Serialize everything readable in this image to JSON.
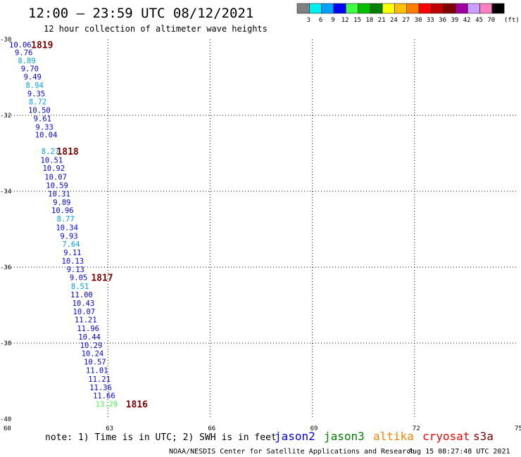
{
  "header": {
    "title": "12:00 – 23:59 UTC 08/12/2021",
    "subtitle": "12 hour collection of altimeter wave heights"
  },
  "colorbar": {
    "unit_label": "(ft)",
    "bins": [
      {
        "label": "3",
        "color": "#808080"
      },
      {
        "label": "6",
        "color": "#00f0f0"
      },
      {
        "label": "9",
        "color": "#00a0ff"
      },
      {
        "label": "12",
        "color": "#0000ff"
      },
      {
        "label": "15",
        "color": "#40ff40"
      },
      {
        "label": "18",
        "color": "#00c000"
      },
      {
        "label": "21",
        "color": "#008000"
      },
      {
        "label": "24",
        "color": "#ffff00"
      },
      {
        "label": "27",
        "color": "#ffc000"
      },
      {
        "label": "30",
        "color": "#ff8000"
      },
      {
        "label": "33",
        "color": "#ff0000"
      },
      {
        "label": "36",
        "color": "#c00000"
      },
      {
        "label": "39",
        "color": "#800000"
      },
      {
        "label": "42",
        "color": "#a000a0"
      },
      {
        "label": "45",
        "color": "#c8a0ff"
      },
      {
        "label": "70",
        "color": "#ff80c0"
      },
      {
        "label": "",
        "color": "#000000"
      }
    ]
  },
  "legend": {
    "note": "note: 1) Time is in UTC; 2) SWH is in feet",
    "satellites": [
      {
        "name": "jason2",
        "color": "#0000ff"
      },
      {
        "name": "jason3",
        "color": "#008000"
      },
      {
        "name": "altika",
        "color": "#ff8000"
      },
      {
        "name": "cryosat",
        "color": "#ff0000"
      },
      {
        "name": "s3a",
        "color": "#800000"
      }
    ]
  },
  "footer": {
    "credit": "NOAA/NESDIS Center for Satellite Applications and Research",
    "timestamp": "Aug 15 08:27:48 UTC 2021"
  },
  "chart_data": {
    "type": "scatter",
    "xlim": [
      60,
      75
    ],
    "ylim": [
      -40,
      -30
    ],
    "x_ticks": [
      {
        "value": 60,
        "label": "60"
      },
      {
        "value": 63,
        "label": "63"
      },
      {
        "value": 66,
        "label": "66"
      },
      {
        "value": 69,
        "label": "69"
      },
      {
        "value": 72,
        "label": "72"
      },
      {
        "value": 75,
        "label": "75"
      }
    ],
    "y_ticks": [
      {
        "value": -30,
        "label": "-30"
      },
      {
        "value": -32,
        "label": "-32"
      },
      {
        "value": -34,
        "label": "-34"
      },
      {
        "value": -36,
        "label": "-36"
      },
      {
        "value": -38,
        "label": "-38"
      },
      {
        "value": -40,
        "label": "-40"
      }
    ],
    "grid": true,
    "points": [
      {
        "lon": 60.43,
        "lat": -30.05,
        "swh": "10.06",
        "color": "#0000ff"
      },
      {
        "lon": 60.53,
        "lat": -30.25,
        "swh": "9.76",
        "color": "#0000ff"
      },
      {
        "lon": 60.62,
        "lat": -30.46,
        "swh": "8.89",
        "color": "#00a0ff"
      },
      {
        "lon": 60.71,
        "lat": -30.68,
        "swh": "9.70",
        "color": "#0000ff"
      },
      {
        "lon": 60.79,
        "lat": -30.89,
        "swh": "9.49",
        "color": "#0000ff"
      },
      {
        "lon": 60.85,
        "lat": -31.11,
        "swh": "8.94",
        "color": "#00a0ff"
      },
      {
        "lon": 60.9,
        "lat": -31.33,
        "swh": "9.35",
        "color": "#0000ff"
      },
      {
        "lon": 60.94,
        "lat": -31.55,
        "swh": "8.72",
        "color": "#00a0ff"
      },
      {
        "lon": 60.99,
        "lat": -31.77,
        "swh": "10.50",
        "color": "#0000ff"
      },
      {
        "lon": 61.08,
        "lat": -31.99,
        "swh": "9.61",
        "color": "#0000ff"
      },
      {
        "lon": 61.14,
        "lat": -32.21,
        "swh": "9.33",
        "color": "#0000ff"
      },
      {
        "lon": 61.19,
        "lat": -32.42,
        "swh": "10.04",
        "color": "#0000ff"
      },
      {
        "lon": 61.31,
        "lat": -32.85,
        "swh": "8.27",
        "color": "#00a0ff"
      },
      {
        "lon": 61.35,
        "lat": -33.08,
        "swh": "10.51",
        "color": "#0000ff"
      },
      {
        "lon": 61.41,
        "lat": -33.3,
        "swh": "10.92",
        "color": "#0000ff"
      },
      {
        "lon": 61.47,
        "lat": -33.53,
        "swh": "10.07",
        "color": "#0000ff"
      },
      {
        "lon": 61.51,
        "lat": -33.75,
        "swh": "10.59",
        "color": "#0000ff"
      },
      {
        "lon": 61.57,
        "lat": -33.97,
        "swh": "10.31",
        "color": "#0000ff"
      },
      {
        "lon": 61.65,
        "lat": -34.19,
        "swh": "9.89",
        "color": "#0000ff"
      },
      {
        "lon": 61.67,
        "lat": -34.41,
        "swh": "10.96",
        "color": "#0000ff"
      },
      {
        "lon": 61.76,
        "lat": -34.63,
        "swh": "8.77",
        "color": "#00a0ff"
      },
      {
        "lon": 61.8,
        "lat": -34.86,
        "swh": "10.34",
        "color": "#0000ff"
      },
      {
        "lon": 61.86,
        "lat": -35.08,
        "swh": "9.93",
        "color": "#0000ff"
      },
      {
        "lon": 61.92,
        "lat": -35.3,
        "swh": "7.64",
        "color": "#00a0ff"
      },
      {
        "lon": 61.96,
        "lat": -35.52,
        "swh": "9.11",
        "color": "#0000ff"
      },
      {
        "lon": 61.97,
        "lat": -35.74,
        "swh": "10.13",
        "color": "#0000ff"
      },
      {
        "lon": 62.05,
        "lat": -35.96,
        "swh": "9.13",
        "color": "#0000ff"
      },
      {
        "lon": 62.14,
        "lat": -36.18,
        "swh": "9.05",
        "color": "#0000ff"
      },
      {
        "lon": 62.18,
        "lat": -36.41,
        "swh": "8.51",
        "color": "#00a0ff"
      },
      {
        "lon": 62.23,
        "lat": -36.63,
        "swh": "11.00",
        "color": "#0000ff"
      },
      {
        "lon": 62.28,
        "lat": -36.85,
        "swh": "10.43",
        "color": "#0000ff"
      },
      {
        "lon": 62.3,
        "lat": -37.07,
        "swh": "10.07",
        "color": "#0000ff"
      },
      {
        "lon": 62.35,
        "lat": -37.29,
        "swh": "11.21",
        "color": "#0000ff"
      },
      {
        "lon": 62.42,
        "lat": -37.52,
        "swh": "11.96",
        "color": "#0000ff"
      },
      {
        "lon": 62.46,
        "lat": -37.74,
        "swh": "10.44",
        "color": "#0000ff"
      },
      {
        "lon": 62.51,
        "lat": -37.96,
        "swh": "10.29",
        "color": "#0000ff"
      },
      {
        "lon": 62.55,
        "lat": -38.18,
        "swh": "10.24",
        "color": "#0000ff"
      },
      {
        "lon": 62.62,
        "lat": -38.4,
        "swh": "10.57",
        "color": "#0000ff"
      },
      {
        "lon": 62.68,
        "lat": -38.62,
        "swh": "11.01",
        "color": "#0000ff"
      },
      {
        "lon": 62.75,
        "lat": -38.85,
        "swh": "11.21",
        "color": "#0000ff"
      },
      {
        "lon": 62.79,
        "lat": -39.07,
        "swh": "11.36",
        "color": "#0000ff"
      },
      {
        "lon": 62.89,
        "lat": -39.29,
        "swh": "11.66",
        "color": "#0000ff"
      },
      {
        "lon": 62.96,
        "lat": -39.51,
        "swh": "13.29",
        "color": "#40ff40"
      }
    ],
    "time_labels": [
      {
        "lon": 61.07,
        "lat": -30.05,
        "label": "1819",
        "color": "#800000"
      },
      {
        "lon": 61.82,
        "lat": -32.85,
        "label": "1818",
        "color": "#800000"
      },
      {
        "lon": 62.83,
        "lat": -36.18,
        "label": "1817",
        "color": "#800000"
      },
      {
        "lon": 63.85,
        "lat": -39.51,
        "label": "1816",
        "color": "#800000"
      }
    ]
  }
}
